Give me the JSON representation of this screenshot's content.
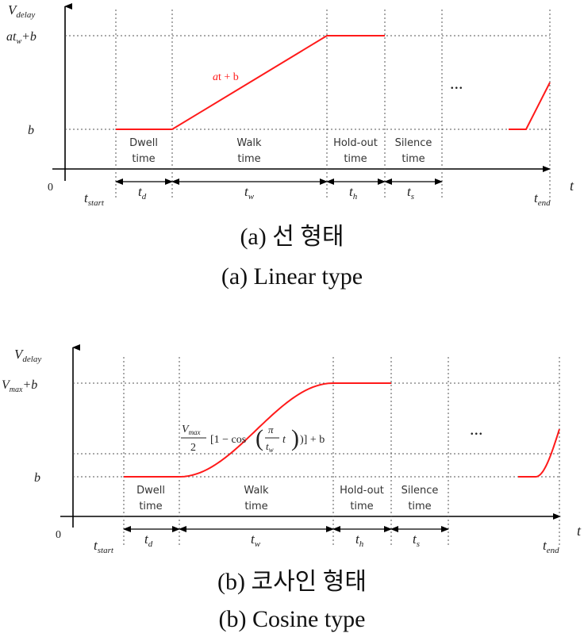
{
  "panels": [
    {
      "id": "linear",
      "ylabel": "V",
      "ylabel_sub": "delay",
      "top_label": "at",
      "top_label_sub": "w",
      "top_label_suffix": "+b",
      "base_label": "b",
      "origin_label": "0",
      "x_axis_label": "t",
      "curve_label_a": "a",
      "curve_label_rest": "t + b",
      "ellipsis": "...",
      "phases": [
        {
          "line1": "Dwell",
          "line2": "time"
        },
        {
          "line1": "Walk",
          "line2": "time"
        },
        {
          "line1": "Hold-out",
          "line2": "time"
        },
        {
          "line1": "Silence",
          "line2": "time"
        }
      ],
      "time_labels": {
        "start": "t",
        "start_sub": "start",
        "d": "t",
        "d_sub": "d",
        "w": "t",
        "w_sub": "w",
        "h": "t",
        "h_sub": "h",
        "s": "t",
        "s_sub": "s",
        "end": "t",
        "end_sub": "end"
      },
      "caption_ko": "(a) 선 형태",
      "caption_en": "(a) Linear type"
    },
    {
      "id": "cosine",
      "ylabel": "V",
      "ylabel_sub": "delay",
      "top_label": "V",
      "top_label_sub": "max",
      "top_label_suffix": "+b",
      "base_label": "b",
      "origin_label": "0",
      "x_axis_label": "t",
      "formula_num": "V",
      "formula_num_sub": "max",
      "formula_den": "2",
      "formula_mid": "[1 − cos",
      "formula_pi": "π",
      "formula_tw": "t",
      "formula_tw_sub": "w",
      "formula_t": "t",
      "formula_tail": ")] + b",
      "ellipsis": "...",
      "phases": [
        {
          "line1": "Dwell",
          "line2": "time"
        },
        {
          "line1": "Walk",
          "line2": "time"
        },
        {
          "line1": "Hold-out",
          "line2": "time"
        },
        {
          "line1": "Silence",
          "line2": "time"
        }
      ],
      "time_labels": {
        "start": "t",
        "start_sub": "start",
        "d": "t",
        "d_sub": "d",
        "w": "t",
        "w_sub": "w",
        "h": "t",
        "h_sub": "h",
        "s": "t",
        "s_sub": "s",
        "end": "t",
        "end_sub": "end"
      },
      "caption_ko": "(b) 코사인 형태",
      "caption_en": "(b) Cosine type"
    }
  ],
  "colors": {
    "curve": "#ff1a1a",
    "axis": "#000000",
    "grid": "#555555"
  }
}
